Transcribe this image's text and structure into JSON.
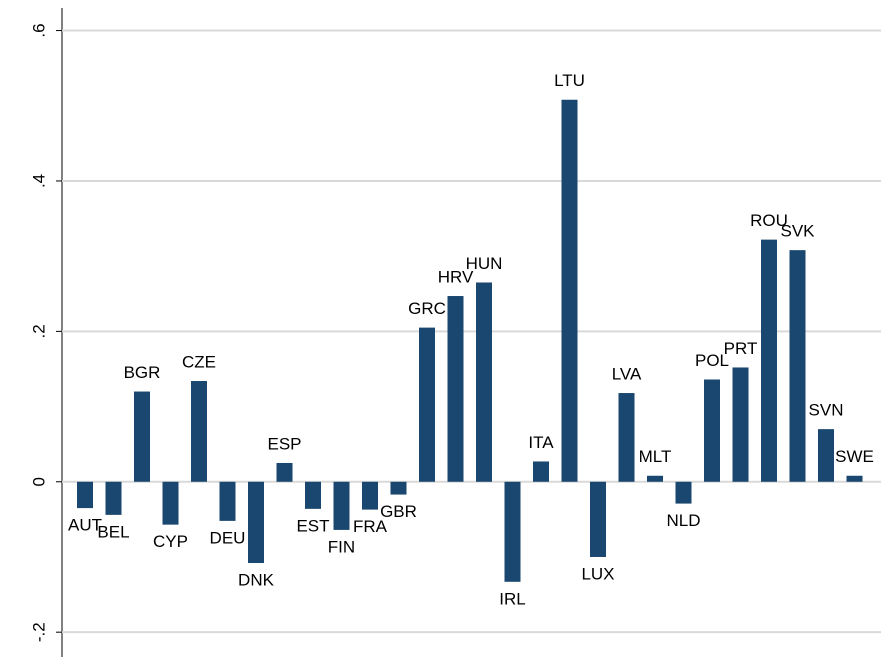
{
  "chart_data": {
    "type": "bar",
    "categories": [
      "AUT",
      "BEL",
      "BGR",
      "CYP",
      "CZE",
      "DEU",
      "DNK",
      "ESP",
      "EST",
      "FIN",
      "FRA",
      "GBR",
      "GRC",
      "HRV",
      "HUN",
      "IRL",
      "ITA",
      "LTU",
      "LUX",
      "LVA",
      "MLT",
      "NLD",
      "POL",
      "PRT",
      "ROU",
      "SVK",
      "SVN",
      "SWE"
    ],
    "values": [
      -0.035,
      -0.044,
      0.12,
      -0.057,
      0.134,
      -0.052,
      -0.108,
      0.025,
      -0.036,
      -0.064,
      -0.037,
      -0.017,
      0.205,
      0.247,
      0.265,
      -0.133,
      0.027,
      0.508,
      -0.1,
      0.118,
      0.008,
      -0.029,
      0.136,
      0.152,
      0.322,
      0.308,
      0.07,
      0.008
    ],
    "color": "#1a476f",
    "ylim": [
      -0.233,
      0.63
    ],
    "yticks": [
      {
        "value": -0.2,
        "label": "-.2"
      },
      0,
      {
        "value": 0.2,
        "label": ".2"
      },
      {
        "value": 0.4,
        "label": ".4"
      },
      {
        "value": 0.6,
        "label": ".6"
      }
    ],
    "grid": true
  }
}
